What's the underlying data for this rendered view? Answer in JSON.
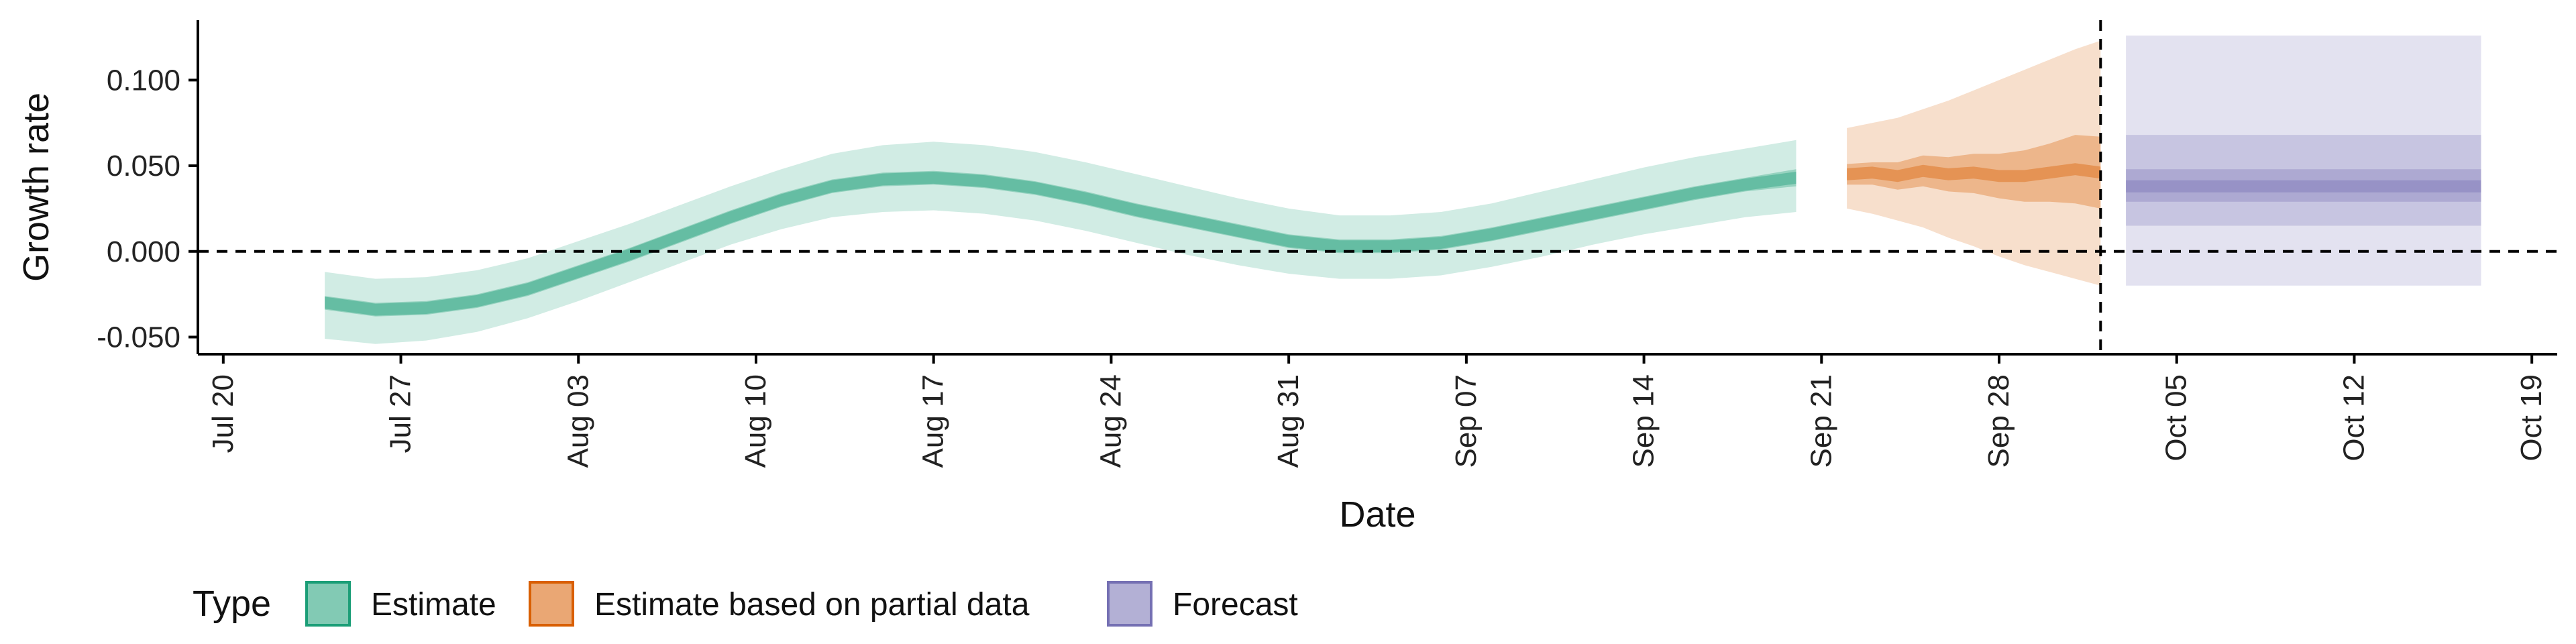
{
  "chart_data": {
    "type": "area",
    "xlabel": "Date",
    "ylabel": "Growth rate",
    "ylim": [
      -0.06,
      0.135
    ],
    "xlim": [
      "2020-07-19",
      "2020-10-20"
    ],
    "x_ticks": [
      "Jul 20",
      "Jul 27",
      "Aug 03",
      "Aug 10",
      "Aug 17",
      "Aug 24",
      "Aug 31",
      "Sep 07",
      "Sep 14",
      "Sep 21",
      "Sep 28",
      "Oct 05",
      "Oct 12",
      "Oct 19"
    ],
    "x_tick_dates": [
      "2020-07-20",
      "2020-07-27",
      "2020-08-03",
      "2020-08-10",
      "2020-08-17",
      "2020-08-24",
      "2020-08-31",
      "2020-09-07",
      "2020-09-14",
      "2020-09-21",
      "2020-09-28",
      "2020-10-05",
      "2020-10-12",
      "2020-10-19"
    ],
    "y_ticks": [
      "0.100",
      "0.050",
      "0.000",
      "-0.050"
    ],
    "y_tick_values": [
      0.1,
      0.05,
      0.0,
      -0.05
    ],
    "hlines": [
      0.0
    ],
    "vlines": [
      "2020-10-02"
    ],
    "grid": false,
    "legend": {
      "position": "bottom-left",
      "title": "Type",
      "entries": [
        {
          "label": "Estimate",
          "color": "#1b9e77"
        },
        {
          "label": "Estimate based on partial data",
          "color": "#d95f02"
        },
        {
          "label": "Forecast",
          "color": "#7570b3"
        }
      ]
    },
    "series": [
      {
        "name": "Estimate",
        "color": "#1b9e77",
        "x": [
          "2020-07-24",
          "2020-07-26",
          "2020-07-28",
          "2020-07-30",
          "2020-08-01",
          "2020-08-03",
          "2020-08-05",
          "2020-08-07",
          "2020-08-09",
          "2020-08-11",
          "2020-08-13",
          "2020-08-15",
          "2020-08-17",
          "2020-08-19",
          "2020-08-21",
          "2020-08-23",
          "2020-08-25",
          "2020-08-27",
          "2020-08-29",
          "2020-08-31",
          "2020-09-02",
          "2020-09-04",
          "2020-09-06",
          "2020-09-08",
          "2020-09-10",
          "2020-09-12",
          "2020-09-14",
          "2020-09-16",
          "2020-09-18",
          "2020-09-20"
        ],
        "median": [
          -0.03,
          -0.034,
          -0.033,
          -0.029,
          -0.022,
          -0.012,
          -0.002,
          0.009,
          0.02,
          0.03,
          0.038,
          0.042,
          0.043,
          0.041,
          0.037,
          0.031,
          0.024,
          0.018,
          0.012,
          0.006,
          0.003,
          0.003,
          0.005,
          0.01,
          0.016,
          0.022,
          0.028,
          0.034,
          0.039,
          0.043
        ],
        "lower_50": [
          -0.034,
          -0.038,
          -0.037,
          -0.033,
          -0.026,
          -0.016,
          -0.006,
          0.005,
          0.016,
          0.026,
          0.034,
          0.038,
          0.039,
          0.037,
          0.033,
          0.027,
          0.02,
          0.014,
          0.008,
          0.002,
          -0.001,
          -0.001,
          0.001,
          0.006,
          0.012,
          0.018,
          0.024,
          0.03,
          0.035,
          0.038
        ],
        "upper_50": [
          -0.026,
          -0.03,
          -0.029,
          -0.025,
          -0.018,
          -0.008,
          0.002,
          0.013,
          0.024,
          0.034,
          0.042,
          0.046,
          0.047,
          0.045,
          0.041,
          0.035,
          0.028,
          0.022,
          0.016,
          0.01,
          0.007,
          0.007,
          0.009,
          0.014,
          0.02,
          0.026,
          0.032,
          0.038,
          0.043,
          0.048
        ],
        "lower_90": [
          -0.051,
          -0.054,
          -0.052,
          -0.047,
          -0.039,
          -0.029,
          -0.018,
          -0.007,
          0.004,
          0.013,
          0.02,
          0.023,
          0.024,
          0.022,
          0.018,
          0.012,
          0.005,
          -0.002,
          -0.008,
          -0.013,
          -0.016,
          -0.016,
          -0.014,
          -0.009,
          -0.003,
          0.004,
          0.01,
          0.015,
          0.02,
          0.023
        ],
        "upper_90": [
          -0.012,
          -0.016,
          -0.015,
          -0.011,
          -0.004,
          0.006,
          0.016,
          0.027,
          0.038,
          0.048,
          0.057,
          0.062,
          0.064,
          0.062,
          0.058,
          0.052,
          0.045,
          0.038,
          0.031,
          0.025,
          0.021,
          0.021,
          0.023,
          0.028,
          0.035,
          0.042,
          0.049,
          0.055,
          0.06,
          0.065
        ]
      },
      {
        "name": "Estimate based on partial data",
        "color": "#d95f02",
        "x": [
          "2020-09-22",
          "2020-09-23",
          "2020-09-24",
          "2020-09-25",
          "2020-09-26",
          "2020-09-27",
          "2020-09-28",
          "2020-09-29",
          "2020-09-30",
          "2020-10-01",
          "2020-10-02"
        ],
        "median": [
          0.045,
          0.046,
          0.044,
          0.047,
          0.045,
          0.046,
          0.044,
          0.044,
          0.046,
          0.048,
          0.046
        ],
        "lower_50": [
          0.039,
          0.039,
          0.036,
          0.038,
          0.035,
          0.034,
          0.031,
          0.029,
          0.029,
          0.028,
          0.025
        ],
        "upper_50": [
          0.051,
          0.052,
          0.052,
          0.056,
          0.055,
          0.057,
          0.057,
          0.059,
          0.063,
          0.068,
          0.067
        ],
        "lower_90": [
          0.025,
          0.022,
          0.018,
          0.014,
          0.008,
          0.003,
          -0.003,
          -0.008,
          -0.012,
          -0.016,
          -0.02
        ],
        "upper_90": [
          0.072,
          0.075,
          0.078,
          0.083,
          0.088,
          0.094,
          0.1,
          0.106,
          0.112,
          0.118,
          0.123
        ]
      },
      {
        "name": "Forecast",
        "color": "#7570b3",
        "x": [
          "2020-10-03",
          "2020-10-17"
        ],
        "median": [
          0.038,
          0.038
        ],
        "lower_50": [
          0.029,
          0.029
        ],
        "upper_50": [
          0.048,
          0.048
        ],
        "lower_75": [
          0.015,
          0.015
        ],
        "upper_75": [
          0.068,
          0.068
        ],
        "lower_90": [
          -0.02,
          -0.02
        ],
        "upper_90": [
          0.126,
          0.126
        ]
      }
    ]
  }
}
